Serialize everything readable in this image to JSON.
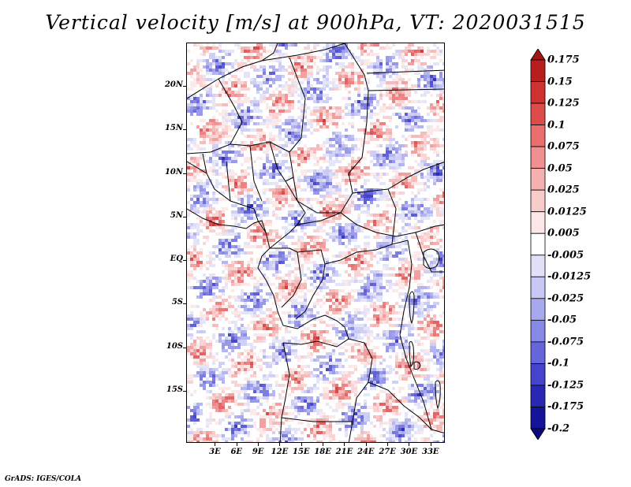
{
  "title": "Vertical velocity [m/s] at 900hPa, VT: 2020031515",
  "credit": "GrADS: IGES/COLA",
  "map": {
    "variable": "Vertical velocity",
    "units": "m/s",
    "level": "900hPa",
    "valid_time": "2020031515",
    "lat_range": [
      -21,
      25
    ],
    "lon_range": [
      -1,
      35
    ],
    "lat_ticks": [
      {
        "value": 20,
        "label": "20N"
      },
      {
        "value": 15,
        "label": "15N"
      },
      {
        "value": 10,
        "label": "10N"
      },
      {
        "value": 5,
        "label": "5N"
      },
      {
        "value": 0,
        "label": "EQ"
      },
      {
        "value": -5,
        "label": "5S"
      },
      {
        "value": -10,
        "label": "10S"
      },
      {
        "value": -15,
        "label": "15S"
      }
    ],
    "lon_ticks": [
      {
        "value": 3,
        "label": "3E"
      },
      {
        "value": 6,
        "label": "6E"
      },
      {
        "value": 9,
        "label": "9E"
      },
      {
        "value": 12,
        "label": "12E"
      },
      {
        "value": 15,
        "label": "15E"
      },
      {
        "value": 18,
        "label": "18E"
      },
      {
        "value": 21,
        "label": "21E"
      },
      {
        "value": 24,
        "label": "24E"
      },
      {
        "value": 27,
        "label": "27E"
      },
      {
        "value": 30,
        "label": "30E"
      },
      {
        "value": 33,
        "label": "33E"
      }
    ]
  },
  "colorbar": {
    "labels": [
      "0.175",
      "0.15",
      "0.125",
      "0.1",
      "0.075",
      "0.05",
      "0.025",
      "0.0125",
      "0.005",
      "-0.005",
      "-0.0125",
      "-0.025",
      "-0.05",
      "-0.075",
      "-0.1",
      "-0.125",
      "-0.175",
      "-0.2"
    ],
    "colors": [
      "#a01515",
      "#b81e1e",
      "#cf3030",
      "#de4b4b",
      "#e96e6e",
      "#f09090",
      "#f5b0b0",
      "#f9cccc",
      "#fce6e6",
      "#ffffff",
      "#e0e0f8",
      "#c8c8f4",
      "#a8a8ee",
      "#8888e6",
      "#6666dc",
      "#4444cc",
      "#2828b4",
      "#14149a",
      "#0a0a7a"
    ]
  }
}
